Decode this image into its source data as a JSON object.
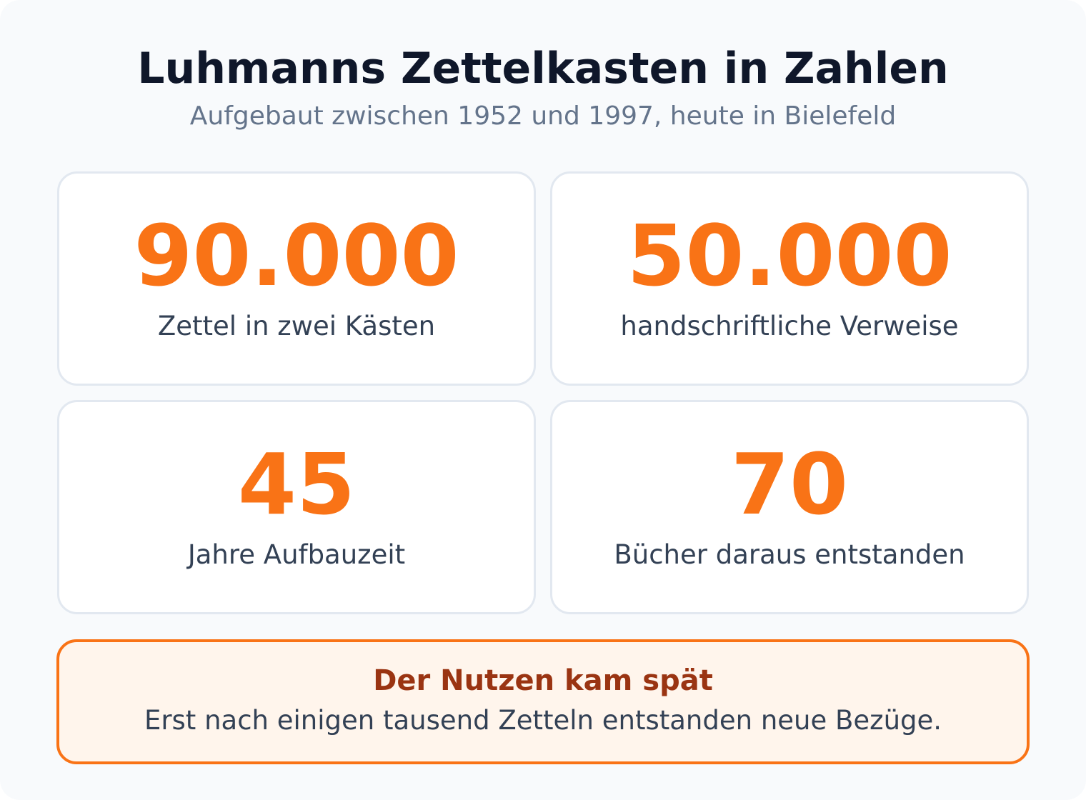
{
  "header": {
    "title": "Luhmanns Zettelkasten in Zahlen",
    "subtitle": "Aufgebaut zwischen 1952 und 1997, heute in Bielefeld"
  },
  "stats": [
    {
      "value": "90.000",
      "label": "Zettel in zwei Kästen"
    },
    {
      "value": "50.000",
      "label": "handschriftliche Verweise"
    },
    {
      "value": "45",
      "label": "Jahre Aufbauzeit"
    },
    {
      "value": "70",
      "label": "Bücher daraus entstanden"
    }
  ],
  "callout": {
    "title": "Der Nutzen kam spät",
    "text": "Erst nach einigen tausend Zetteln entstanden neue Bezüge."
  },
  "colors": {
    "accent": "#f97316",
    "title": "#0f172a",
    "subtitle": "#64748b",
    "body_text": "#334155",
    "callout_title": "#9a3412",
    "callout_background": "#fff5ec",
    "card_border": "#e2e8f0",
    "page_background": "#f8fafc"
  }
}
